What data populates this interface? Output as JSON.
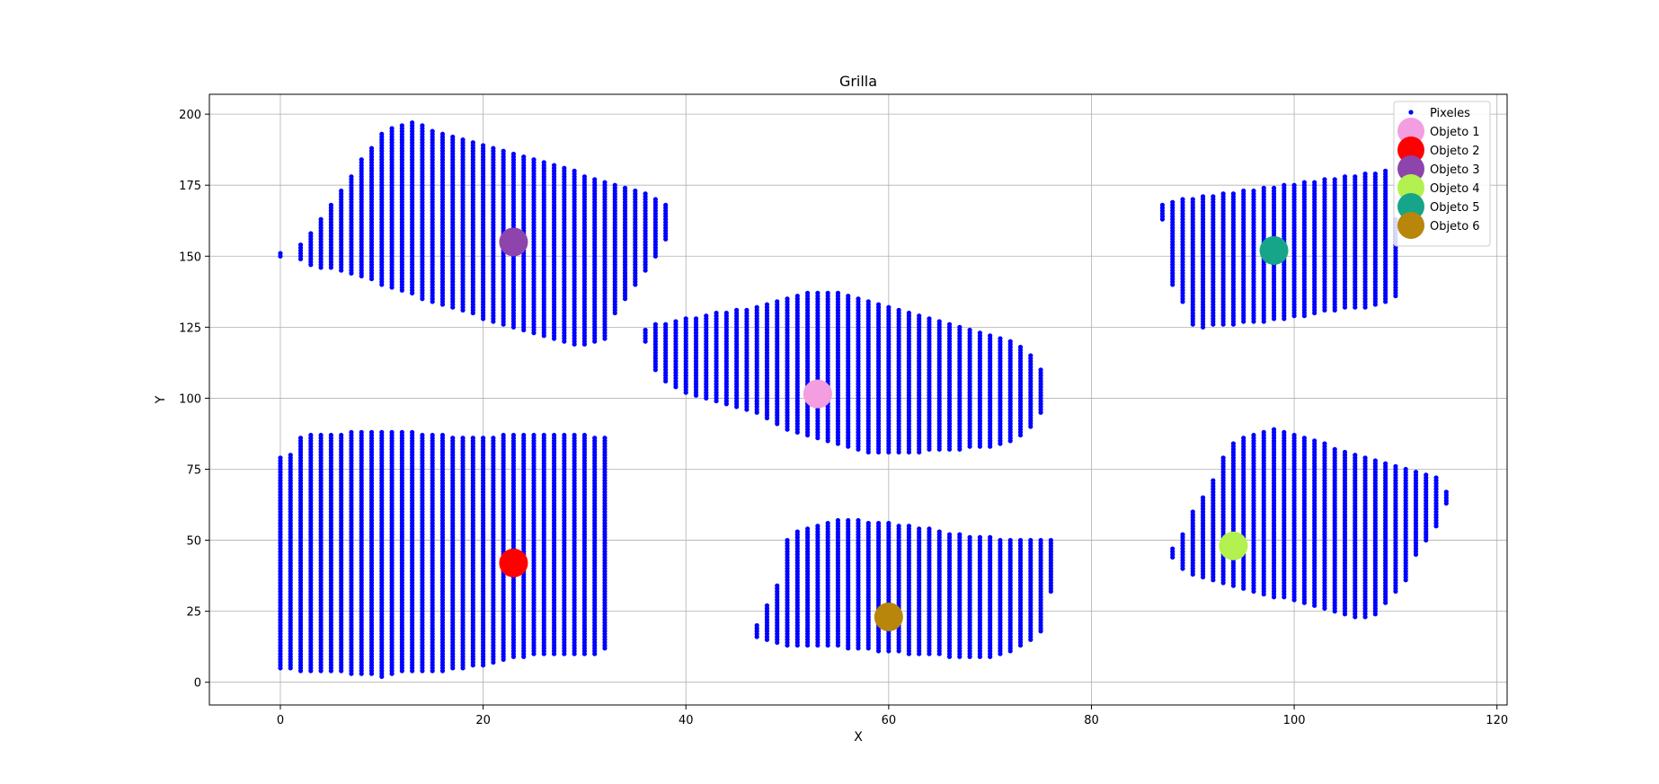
{
  "chart_data": {
    "type": "scatter",
    "title": "Grilla",
    "xlabel": "X",
    "ylabel": "Y",
    "xlim": [
      -7,
      121
    ],
    "ylim": [
      -8,
      207
    ],
    "xticks": [
      0,
      20,
      40,
      60,
      80,
      100,
      120
    ],
    "yticks": [
      0,
      25,
      50,
      75,
      100,
      125,
      150,
      175,
      200
    ],
    "grid": true,
    "legend_position": "top-right",
    "pixel_series": {
      "name": "Pixeles",
      "color": "#0000ff",
      "regions": [
        {
          "x": [
            0,
            1,
            2,
            3,
            4,
            5,
            6,
            7,
            8,
            9,
            10,
            11,
            12,
            13,
            14,
            15,
            16,
            17,
            18,
            19,
            20,
            21,
            22,
            23,
            24,
            25,
            26,
            27,
            28,
            29,
            30,
            31,
            32
          ],
          "ymin": [
            5,
            5,
            4,
            4,
            4,
            4,
            4,
            3,
            3,
            3,
            2,
            3,
            4,
            4,
            4,
            4,
            4,
            5,
            5,
            6,
            6,
            7,
            8,
            9,
            9,
            10,
            10,
            10,
            10,
            10,
            10,
            10,
            12
          ],
          "ymax": [
            79,
            80,
            86,
            87,
            87,
            87,
            87,
            88,
            88,
            88,
            88,
            88,
            88,
            88,
            87,
            87,
            87,
            86,
            86,
            86,
            86,
            86,
            87,
            87,
            87,
            87,
            87,
            87,
            87,
            87,
            87,
            86,
            86
          ]
        },
        {
          "x": [
            0,
            2,
            3,
            4,
            5,
            6,
            7,
            8,
            9,
            10,
            11,
            12,
            13,
            14,
            15,
            16,
            17,
            18,
            19,
            20,
            21,
            22,
            23,
            24,
            25,
            26,
            27,
            28,
            29,
            30,
            31,
            32,
            33,
            34,
            35,
            36,
            37,
            38
          ],
          "ymin": [
            150,
            149,
            147,
            146,
            146,
            145,
            144,
            143,
            142,
            140,
            139,
            138,
            137,
            135,
            134,
            133,
            132,
            131,
            130,
            128,
            127,
            126,
            125,
            124,
            123,
            122,
            121,
            120,
            119,
            119,
            120,
            121,
            130,
            135,
            140,
            145,
            150,
            156
          ],
          "ymax": [
            151,
            154,
            158,
            163,
            168,
            173,
            178,
            184,
            188,
            193,
            195,
            196,
            197,
            196,
            194,
            193,
            192,
            191,
            190,
            189,
            188,
            187,
            186,
            185,
            184,
            183,
            182,
            181,
            180,
            178,
            177,
            176,
            175,
            174,
            173,
            172,
            170,
            168
          ]
        },
        {
          "x": [
            36,
            37,
            38,
            39,
            40,
            41,
            42,
            43,
            44,
            45,
            46,
            47,
            48,
            49,
            50,
            51,
            52,
            53,
            54,
            55,
            56,
            57,
            58,
            59,
            60,
            61,
            62,
            63,
            64,
            65,
            66,
            67,
            68,
            69,
            70,
            71,
            72,
            73,
            74,
            75
          ],
          "ymin": [
            120,
            110,
            106,
            104,
            102,
            101,
            100,
            99,
            98,
            97,
            96,
            95,
            93,
            91,
            89,
            88,
            87,
            86,
            85,
            84,
            83,
            82,
            81,
            81,
            81,
            81,
            81,
            81,
            82,
            82,
            82,
            82,
            83,
            83,
            83,
            84,
            85,
            87,
            90,
            95
          ],
          "ymax": [
            124,
            126,
            126,
            127,
            128,
            128,
            129,
            130,
            130,
            131,
            131,
            132,
            133,
            134,
            135,
            136,
            137,
            137,
            137,
            137,
            136,
            135,
            134,
            133,
            132,
            131,
            130,
            129,
            128,
            127,
            126,
            125,
            124,
            123,
            122,
            121,
            120,
            118,
            115,
            110
          ]
        },
        {
          "x": [
            47,
            48,
            49,
            50,
            51,
            52,
            53,
            54,
            55,
            56,
            57,
            58,
            59,
            60,
            61,
            62,
            63,
            64,
            65,
            66,
            67,
            68,
            69,
            70,
            71,
            72,
            73,
            74,
            75,
            76
          ],
          "ymin": [
            16,
            15,
            14,
            13,
            13,
            13,
            13,
            13,
            13,
            12,
            12,
            12,
            11,
            11,
            11,
            10,
            10,
            10,
            10,
            9,
            9,
            9,
            9,
            9,
            10,
            11,
            13,
            15,
            18,
            32
          ],
          "ymax": [
            20,
            27,
            34,
            50,
            53,
            54,
            55,
            56,
            57,
            57,
            57,
            56,
            56,
            56,
            55,
            55,
            54,
            54,
            53,
            52,
            52,
            51,
            51,
            51,
            50,
            50,
            50,
            50,
            50,
            50
          ]
        },
        {
          "x": [
            87,
            88,
            89,
            90,
            91,
            92,
            93,
            94,
            95,
            96,
            97,
            98,
            99,
            100,
            101,
            102,
            103,
            104,
            105,
            106,
            107,
            108,
            109,
            110
          ],
          "ymin": [
            163,
            140,
            134,
            126,
            125,
            126,
            126,
            126,
            127,
            127,
            127,
            128,
            128,
            129,
            129,
            130,
            131,
            131,
            132,
            132,
            132,
            133,
            134,
            136
          ],
          "ymax": [
            168,
            169,
            170,
            170,
            171,
            171,
            172,
            172,
            173,
            173,
            174,
            174,
            175,
            175,
            176,
            176,
            177,
            177,
            178,
            178,
            179,
            179,
            180,
            163
          ]
        },
        {
          "x": [
            88,
            89,
            90,
            91,
            92,
            93,
            94,
            95,
            96,
            97,
            98,
            99,
            100,
            101,
            102,
            103,
            104,
            105,
            106,
            107,
            108,
            109,
            110,
            111,
            112,
            113,
            114,
            115
          ],
          "ymin": [
            44,
            40,
            38,
            37,
            36,
            35,
            34,
            33,
            32,
            31,
            30,
            30,
            29,
            28,
            27,
            26,
            25,
            24,
            23,
            23,
            24,
            28,
            32,
            36,
            45,
            50,
            55,
            63
          ],
          "ymax": [
            47,
            52,
            60,
            65,
            71,
            79,
            84,
            86,
            87,
            88,
            89,
            88,
            87,
            86,
            85,
            84,
            82,
            81,
            80,
            79,
            78,
            77,
            76,
            75,
            74,
            73,
            72,
            67
          ]
        }
      ]
    },
    "objects": [
      {
        "name": "Objeto 1",
        "x": 53,
        "y": 101.5,
        "color": "#f39ee0"
      },
      {
        "name": "Objeto 2",
        "x": 23,
        "y": 42,
        "color": "#ff0000"
      },
      {
        "name": "Objeto 3",
        "x": 23,
        "y": 155,
        "color": "#8e44ad"
      },
      {
        "name": "Objeto 4",
        "x": 94,
        "y": 48,
        "color": "#b2f14f"
      },
      {
        "name": "Objeto 5",
        "x": 98,
        "y": 152,
        "color": "#17a589"
      },
      {
        "name": "Objeto 6",
        "x": 60,
        "y": 23,
        "color": "#b7860b"
      }
    ]
  }
}
